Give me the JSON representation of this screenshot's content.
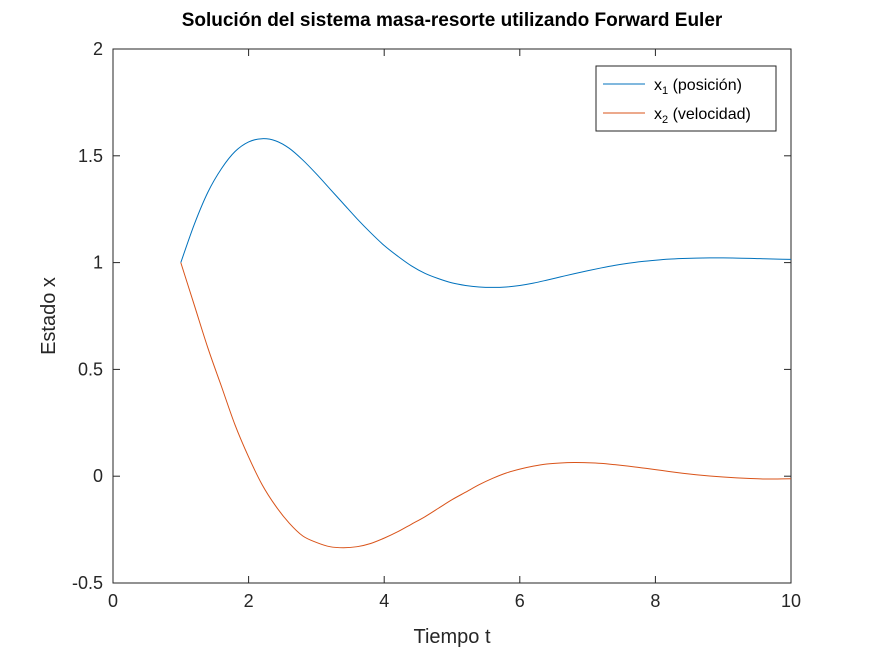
{
  "chart_data": {
    "type": "line",
    "title": "Solución del sistema masa-resorte utilizando Forward Euler",
    "xlabel": "Tiempo t",
    "ylabel": "Estado x",
    "xlim": [
      0,
      10
    ],
    "ylim": [
      -0.5,
      2
    ],
    "xticks": [
      "0",
      "2",
      "4",
      "6",
      "8",
      "10"
    ],
    "yticks": [
      "-0.5",
      "0",
      "0.5",
      "1",
      "1.5",
      "2"
    ],
    "grid": false,
    "legend_position": "top-right",
    "series": [
      {
        "name": "x1 (posición)",
        "label_main": "x",
        "label_sub": "1",
        "label_rest": " (posición)",
        "color": "#0072BD",
        "x": [
          1.0,
          1.2,
          1.4,
          1.6,
          1.8,
          2.0,
          2.2,
          2.4,
          2.6,
          2.8,
          3.0,
          3.2,
          3.4,
          3.6,
          3.8,
          4.0,
          4.2,
          4.4,
          4.6,
          4.8,
          5.0,
          5.2,
          5.4,
          5.6,
          5.8,
          6.0,
          6.2,
          6.4,
          6.6,
          6.8,
          7.0,
          7.2,
          7.4,
          7.6,
          7.8,
          8.0,
          8.2,
          8.4,
          8.6,
          8.8,
          9.0,
          9.2,
          9.4,
          9.6,
          9.8,
          10.0
        ],
        "y": [
          1.0,
          1.18,
          1.33,
          1.44,
          1.52,
          1.565,
          1.58,
          1.57,
          1.535,
          1.48,
          1.415,
          1.345,
          1.275,
          1.205,
          1.14,
          1.08,
          1.03,
          0.985,
          0.95,
          0.925,
          0.905,
          0.893,
          0.886,
          0.884,
          0.886,
          0.893,
          0.904,
          0.918,
          0.933,
          0.948,
          0.962,
          0.975,
          0.987,
          0.997,
          1.005,
          1.011,
          1.016,
          1.019,
          1.021,
          1.022,
          1.022,
          1.021,
          1.02,
          1.018,
          1.016,
          1.015
        ]
      },
      {
        "name": "x2 (velocidad)",
        "label_main": "x",
        "label_sub": "2",
        "label_rest": " (velocidad)",
        "color": "#D95319",
        "x": [
          1.0,
          1.2,
          1.4,
          1.6,
          1.8,
          2.0,
          2.2,
          2.4,
          2.6,
          2.8,
          3.0,
          3.2,
          3.4,
          3.6,
          3.8,
          4.0,
          4.2,
          4.4,
          4.6,
          4.8,
          5.0,
          5.2,
          5.4,
          5.6,
          5.8,
          6.0,
          6.2,
          6.4,
          6.6,
          6.8,
          7.0,
          7.2,
          7.4,
          7.6,
          7.8,
          8.0,
          8.2,
          8.4,
          8.6,
          8.8,
          9.0,
          9.2,
          9.4,
          9.6,
          9.8,
          10.0
        ],
        "y": [
          1.0,
          0.8,
          0.6,
          0.42,
          0.24,
          0.09,
          -0.04,
          -0.14,
          -0.22,
          -0.28,
          -0.31,
          -0.33,
          -0.335,
          -0.33,
          -0.315,
          -0.29,
          -0.26,
          -0.225,
          -0.19,
          -0.15,
          -0.11,
          -0.075,
          -0.04,
          -0.01,
          0.015,
          0.033,
          0.047,
          0.057,
          0.062,
          0.064,
          0.063,
          0.06,
          0.054,
          0.047,
          0.039,
          0.031,
          0.022,
          0.014,
          0.007,
          0.001,
          -0.004,
          -0.008,
          -0.011,
          -0.013,
          -0.013,
          -0.012
        ]
      }
    ]
  }
}
